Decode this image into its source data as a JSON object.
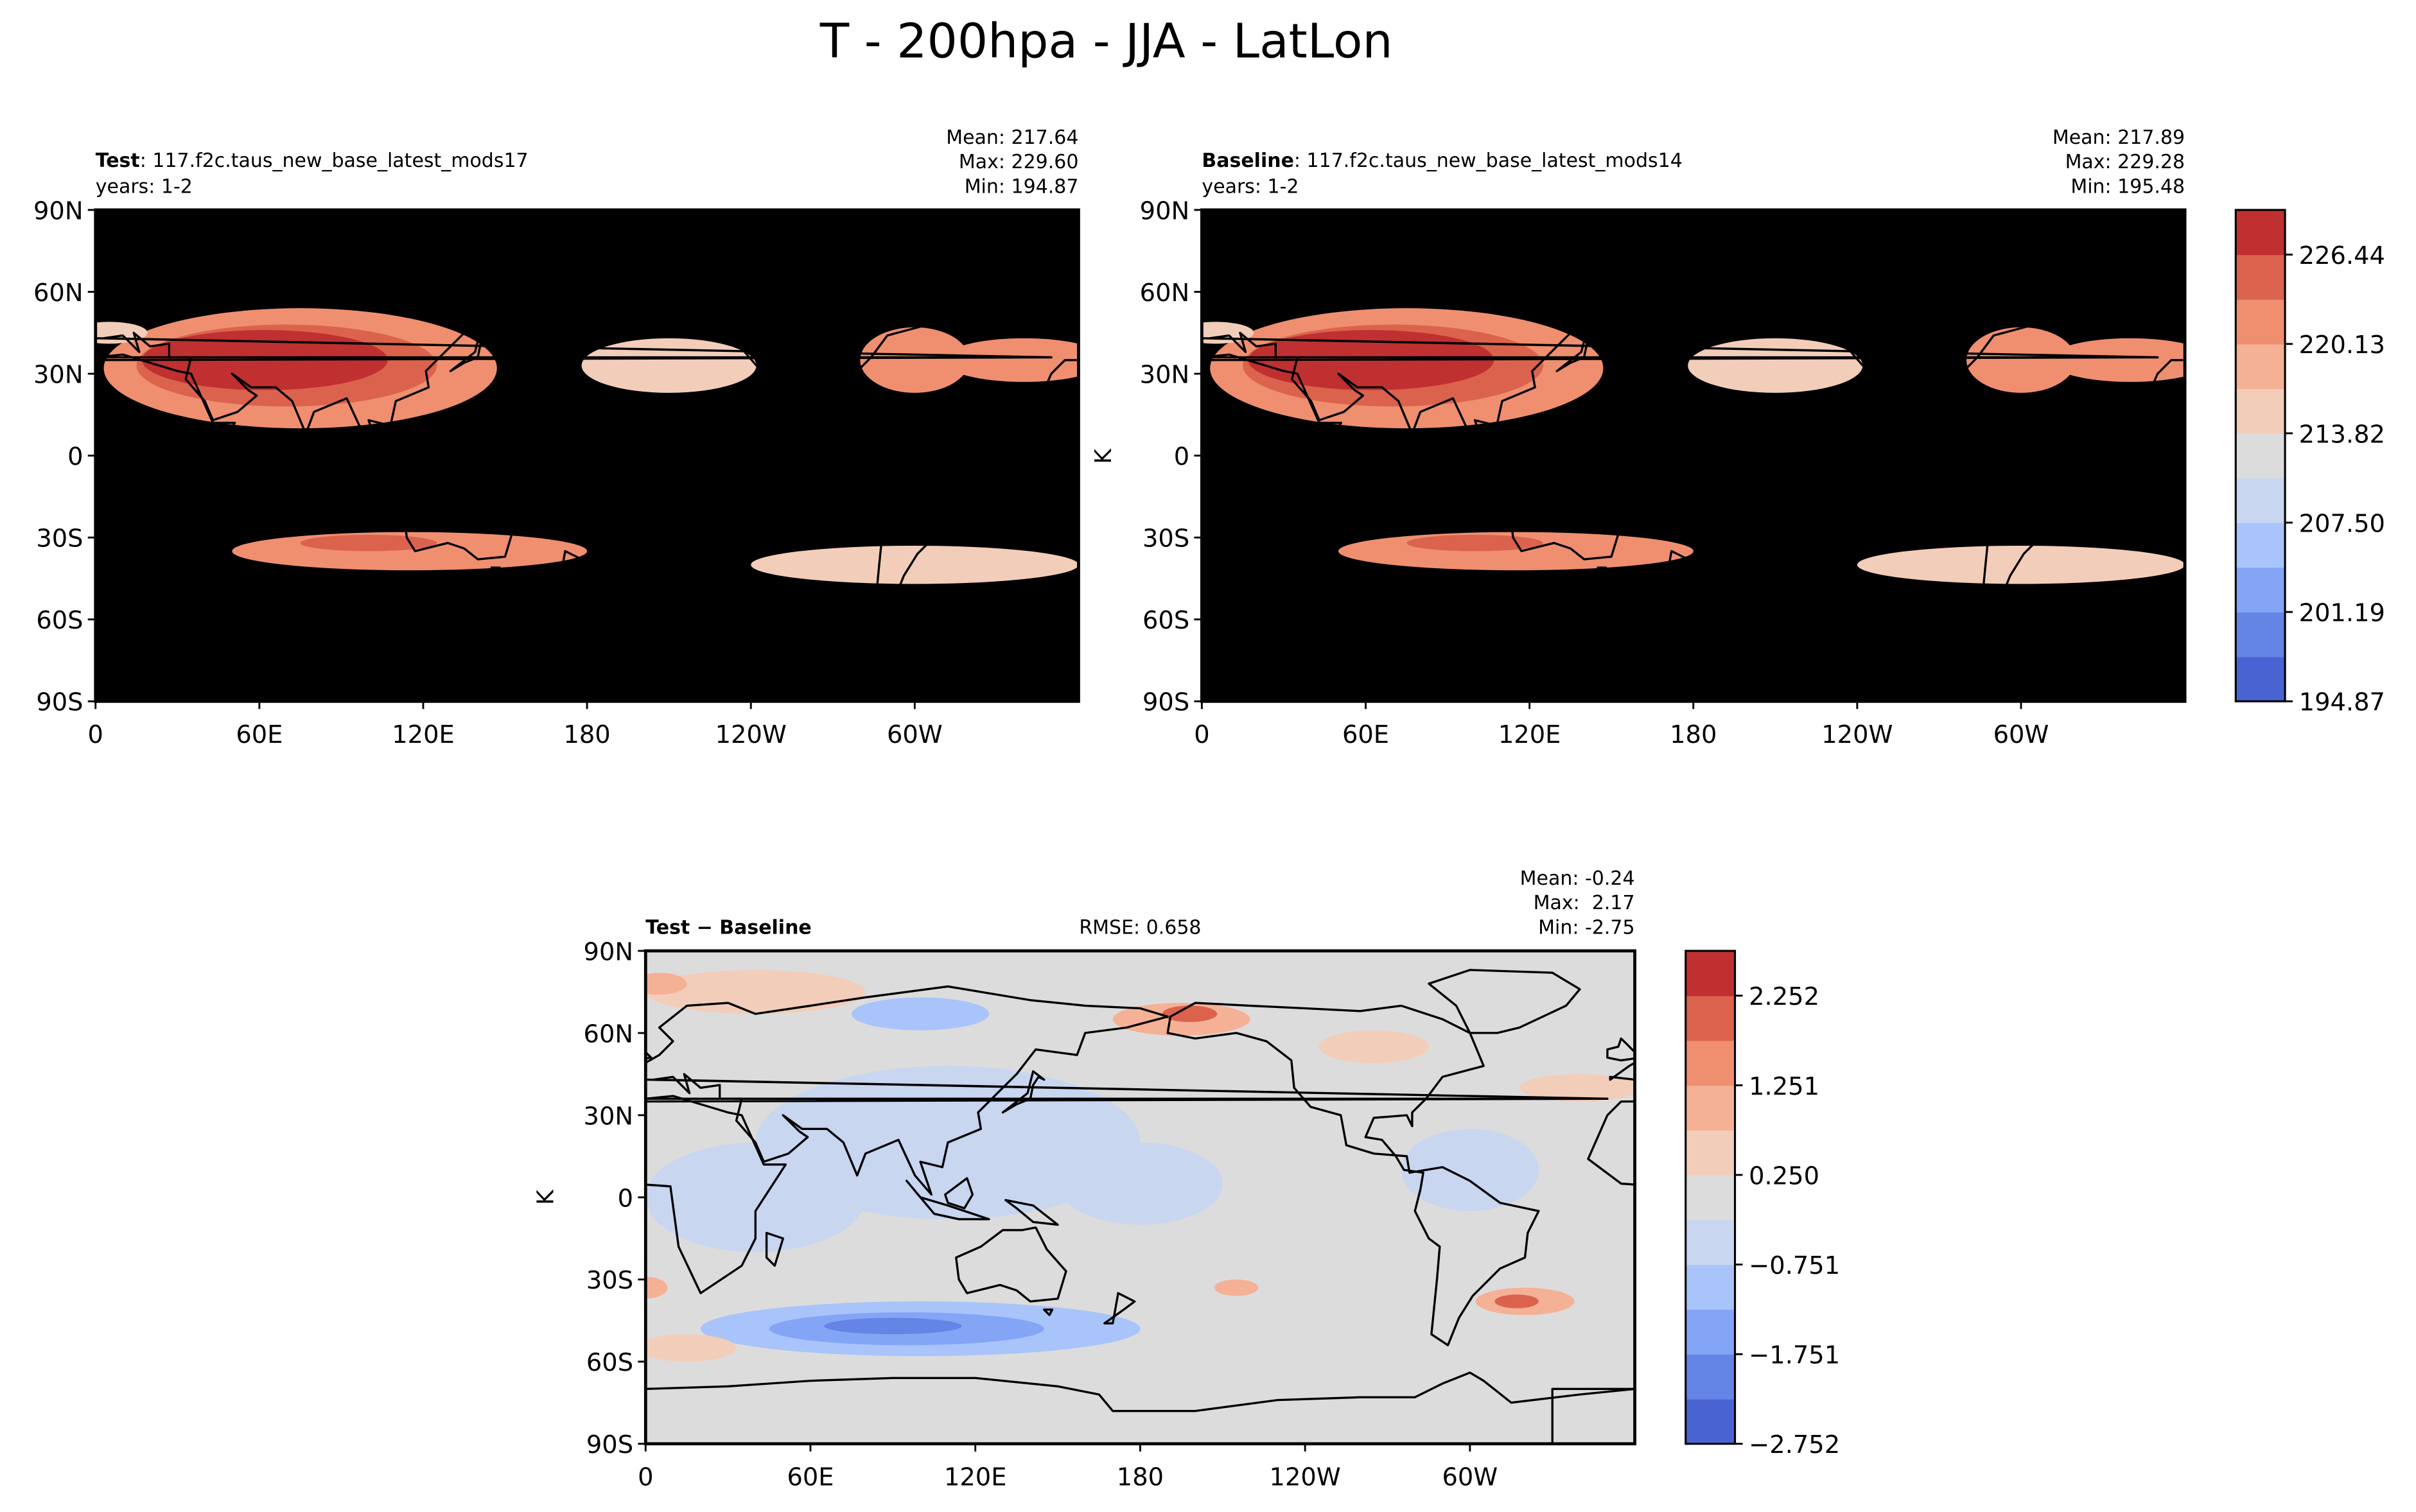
{
  "figure": {
    "title": "T - 200hpa - JJA - LatLon"
  },
  "panels": {
    "test": {
      "label_bold": "Test",
      "label_text": ": 117.f2c.taus_new_base_latest_mods17",
      "years": "years: 1-2",
      "stats": [
        "Mean: 217.64",
        "Max: 229.60",
        "Min: 194.87"
      ],
      "ylabel": ""
    },
    "baseline": {
      "label_bold": "Baseline",
      "label_text": ": 117.f2c.taus_new_base_latest_mods14",
      "years": "years: 1-2",
      "stats": [
        "Mean: 217.89",
        "Max: 229.28",
        "Min: 195.48"
      ],
      "ylabel": "K"
    },
    "diff": {
      "label_bold": "Test − Baseline",
      "rmse": "RMSE: 0.658",
      "stats": [
        "Mean: -0.24",
        "Max:  2.17",
        "Min: -2.75"
      ],
      "ylabel": "K"
    }
  },
  "axes": {
    "lat_ticks": [
      "90N",
      "60N",
      "30N",
      "0",
      "30S",
      "60S",
      "90S"
    ],
    "lon_ticks": [
      "0",
      "60E",
      "120E",
      "180",
      "120W",
      "60W"
    ]
  },
  "colors": {
    "abs_levels": [
      "#4a63d3",
      "#6485e6",
      "#84a5f6",
      "#a8c4fb",
      "#c8d6f0",
      "#dddcdc",
      "#f2cdb9",
      "#f5b195",
      "#ef8f6f",
      "#db634d",
      "#c03030"
    ],
    "diff_levels": [
      "#4a63d3",
      "#6485e6",
      "#84a5f6",
      "#a8c4fb",
      "#c8d6f0",
      "#dddcdc",
      "#f2cdb9",
      "#f5b195",
      "#ef8f6f",
      "#db634d",
      "#c03030"
    ],
    "coast": "#000000"
  },
  "chart_data": [
    {
      "type": "heatmap",
      "title": "Test: 117.f2c.taus_new_base_latest_mods17",
      "x_ticks": [
        "0",
        "60E",
        "120E",
        "180",
        "120W",
        "60W"
      ],
      "y_ticks": [
        "90N",
        "60N",
        "30N",
        "0",
        "30S",
        "60S",
        "90S"
      ],
      "units": "K",
      "stats": {
        "mean": 217.64,
        "max": 229.6,
        "min": 194.87
      }
    },
    {
      "type": "heatmap",
      "title": "Baseline: 117.f2c.taus_new_base_latest_mods14",
      "x_ticks": [
        "0",
        "60E",
        "120E",
        "180",
        "120W",
        "60W"
      ],
      "y_ticks": [
        "90N",
        "60N",
        "30N",
        "0",
        "30S",
        "60S",
        "90S"
      ],
      "units": "K",
      "stats": {
        "mean": 217.89,
        "max": 229.28,
        "min": 195.48
      },
      "colorbar_ticks": [
        "194.87",
        "201.19",
        "207.50",
        "213.82",
        "220.13",
        "226.44"
      ]
    },
    {
      "type": "heatmap",
      "title": "Test − Baseline",
      "x_ticks": [
        "0",
        "60E",
        "120E",
        "180",
        "120W",
        "60W"
      ],
      "y_ticks": [
        "90N",
        "60N",
        "30N",
        "0",
        "30S",
        "60S",
        "90S"
      ],
      "units": "K",
      "rmse": 0.658,
      "stats": {
        "mean": -0.24,
        "max": 2.17,
        "min": -2.75
      },
      "colorbar_ticks": [
        "−2.752",
        "−1.751",
        "−0.751",
        "0.250",
        "1.251",
        "2.252"
      ]
    }
  ],
  "colorbars": {
    "abs": {
      "ticks": [
        "194.87",
        "201.19",
        "207.50",
        "213.82",
        "220.13",
        "226.44"
      ]
    },
    "diff": {
      "ticks": [
        "−2.752",
        "−1.751",
        "−0.751",
        "0.250",
        "1.251",
        "2.252"
      ]
    }
  }
}
